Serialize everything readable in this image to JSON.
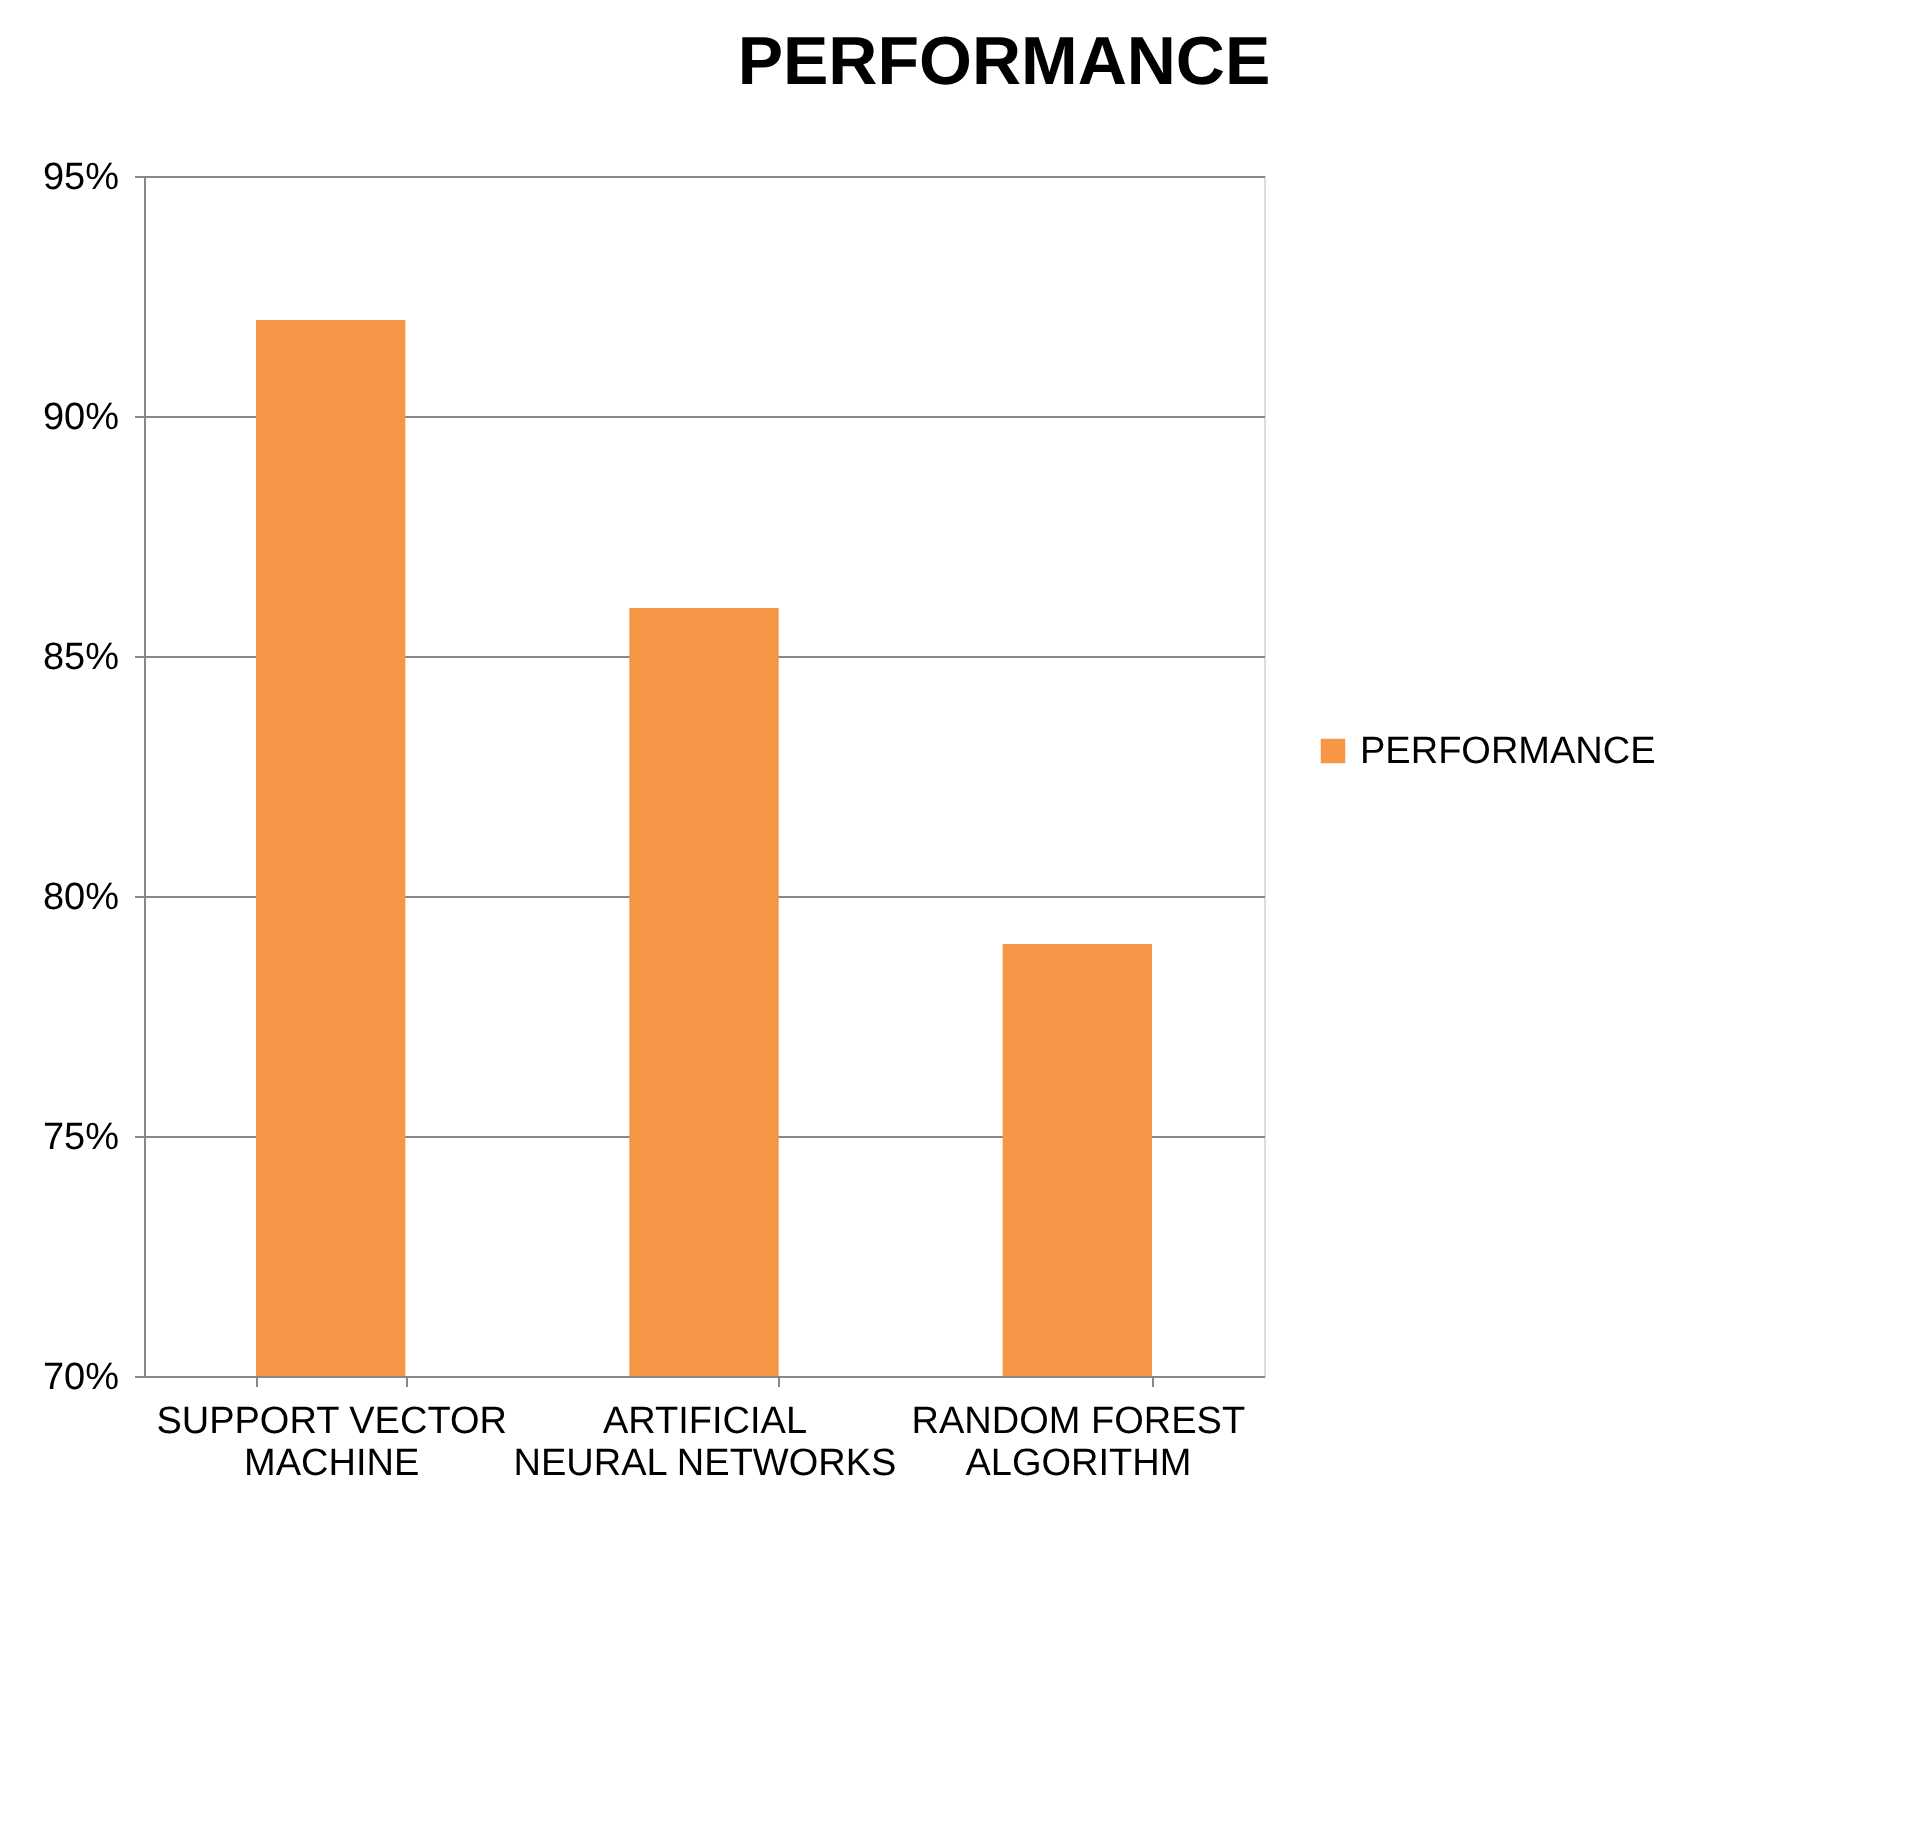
{
  "chart_data": {
    "type": "bar",
    "title": "PERFORMANCE",
    "categories": [
      "SUPPORT VECTOR MACHINE",
      "ARTIFICIAL NEURAL NETWORKS",
      "RANDOM FOREST ALGORITHM"
    ],
    "series": [
      {
        "name": "PERFORMANCE",
        "color": "#f79646",
        "values": [
          92,
          86,
          79
        ]
      }
    ],
    "ylim": [
      70,
      95
    ],
    "yticks": [
      {
        "value": 70,
        "label": "70%"
      },
      {
        "value": 75,
        "label": "75%"
      },
      {
        "value": 80,
        "label": "80%"
      },
      {
        "value": 85,
        "label": "85%"
      },
      {
        "value": 90,
        "label": "90%"
      },
      {
        "value": 95,
        "label": "95%"
      }
    ],
    "grid": "y",
    "legend": "right"
  }
}
